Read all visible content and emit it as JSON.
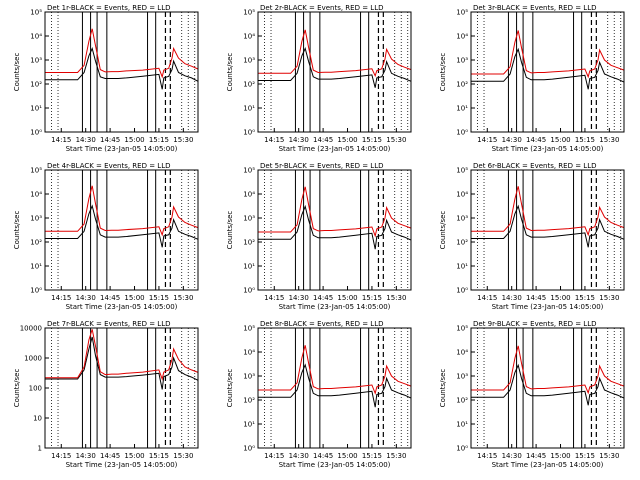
{
  "figure": {
    "xlabel": "Start Time (23-Jan-05 14:05:00)",
    "ylabel": "Counts/sec",
    "xticks": [
      "14:15",
      "14:30",
      "14:45",
      "15:00",
      "15:15",
      "15:30"
    ],
    "colors": {
      "black_series": "#000000",
      "red_series": "#e00000"
    }
  },
  "chart_data": [
    {
      "type": "line",
      "title": "Det 1r-BLACK = Events, RED = LLD",
      "ylog": true,
      "ylim": [
        1,
        100000
      ],
      "yticks": [
        "10⁰",
        "10¹",
        "10²",
        "10³",
        "10⁴",
        "10⁵"
      ],
      "x_minutes": [
        0,
        10,
        20,
        24,
        27,
        29,
        31,
        34,
        37,
        41,
        45,
        50,
        60,
        70,
        72,
        73,
        76,
        78,
        79,
        82,
        86,
        90,
        94
      ],
      "series": [
        {
          "values": [
            150,
            150,
            150,
            300,
            1500,
            3000,
            900,
            200,
            170,
            170,
            170,
            180,
            210,
            250,
            60,
            180,
            210,
            400,
            900,
            300,
            220,
            180,
            130
          ]
        },
        {
          "values": [
            300,
            300,
            300,
            600,
            6000,
            20000,
            4000,
            400,
            320,
            330,
            330,
            350,
            380,
            450,
            200,
            380,
            450,
            1200,
            3000,
            1200,
            700,
            550,
            420
          ]
        }
      ]
    },
    {
      "type": "line",
      "title": "Det 2r-BLACK = Events, RED = LLD",
      "ylog": true,
      "ylim": [
        1,
        100000
      ],
      "yticks": [
        "10⁰",
        "10¹",
        "10²",
        "10³",
        "10⁴",
        "10⁵"
      ],
      "x_minutes": [
        0,
        10,
        20,
        24,
        27,
        29,
        31,
        34,
        37,
        41,
        45,
        50,
        60,
        70,
        72,
        73,
        76,
        78,
        79,
        82,
        86,
        90,
        94
      ],
      "series": [
        {
          "values": [
            140,
            140,
            140,
            280,
            1500,
            3000,
            900,
            200,
            160,
            160,
            160,
            170,
            200,
            240,
            70,
            180,
            200,
            380,
            850,
            280,
            210,
            170,
            130
          ]
        },
        {
          "values": [
            280,
            280,
            280,
            550,
            6000,
            18000,
            3500,
            380,
            300,
            310,
            310,
            330,
            360,
            430,
            220,
            360,
            430,
            1100,
            2800,
            1100,
            650,
            500,
            400
          ]
        }
      ]
    },
    {
      "type": "line",
      "title": "Det 3r-BLACK = Events, RED = LLD",
      "ylog": true,
      "ylim": [
        1,
        100000
      ],
      "yticks": [
        "10⁰",
        "10¹",
        "10²",
        "10³",
        "10⁴",
        "10⁵"
      ],
      "x_minutes": [
        0,
        10,
        20,
        24,
        27,
        29,
        31,
        34,
        37,
        41,
        45,
        50,
        60,
        70,
        72,
        73,
        76,
        78,
        79,
        82,
        86,
        90,
        94
      ],
      "series": [
        {
          "values": [
            130,
            130,
            130,
            260,
            1400,
            2800,
            800,
            190,
            150,
            150,
            150,
            160,
            190,
            230,
            60,
            170,
            190,
            360,
            800,
            260,
            200,
            160,
            120
          ]
        },
        {
          "values": [
            260,
            260,
            260,
            520,
            5500,
            17000,
            3300,
            360,
            290,
            300,
            300,
            320,
            350,
            420,
            200,
            350,
            420,
            1000,
            2600,
            1000,
            600,
            480,
            380
          ]
        }
      ]
    },
    {
      "type": "line",
      "title": "Det 4r-BLACK = Events, RED = LLD",
      "ylog": true,
      "ylim": [
        1,
        100000
      ],
      "yticks": [
        "10⁰",
        "10¹",
        "10²",
        "10³",
        "10⁴",
        "10⁵"
      ],
      "x_minutes": [
        0,
        10,
        20,
        24,
        27,
        29,
        31,
        34,
        37,
        41,
        45,
        50,
        60,
        70,
        72,
        73,
        76,
        78,
        79,
        82,
        86,
        90,
        94
      ],
      "series": [
        {
          "values": [
            140,
            140,
            140,
            280,
            1500,
            3200,
            900,
            200,
            160,
            160,
            160,
            170,
            200,
            240,
            60,
            180,
            200,
            380,
            850,
            280,
            210,
            170,
            130
          ]
        },
        {
          "values": [
            280,
            280,
            280,
            560,
            6500,
            22000,
            4000,
            380,
            300,
            310,
            310,
            330,
            360,
            430,
            200,
            360,
            430,
            1100,
            2900,
            1100,
            650,
            500,
            400
          ]
        }
      ]
    },
    {
      "type": "line",
      "title": "Det 5r-BLACK = Events, RED = LLD",
      "ylog": true,
      "ylim": [
        1,
        100000
      ],
      "yticks": [
        "10⁰",
        "10¹",
        "10²",
        "10³",
        "10⁴",
        "10⁵"
      ],
      "x_minutes": [
        0,
        10,
        20,
        24,
        27,
        29,
        31,
        34,
        37,
        41,
        45,
        50,
        60,
        70,
        72,
        73,
        76,
        78,
        79,
        82,
        86,
        90,
        94
      ],
      "series": [
        {
          "values": [
            130,
            130,
            130,
            260,
            1400,
            3000,
            850,
            190,
            150,
            150,
            150,
            160,
            190,
            230,
            50,
            170,
            190,
            360,
            800,
            260,
            200,
            160,
            120
          ]
        },
        {
          "values": [
            260,
            260,
            260,
            520,
            6000,
            20000,
            3800,
            360,
            290,
            300,
            300,
            320,
            350,
            420,
            180,
            350,
            420,
            1000,
            2700,
            1000,
            600,
            480,
            380
          ]
        }
      ]
    },
    {
      "type": "line",
      "title": "Det 6r-BLACK = Events, RED = LLD",
      "ylog": true,
      "ylim": [
        1,
        100000
      ],
      "yticks": [
        "10⁰",
        "10¹",
        "10²",
        "10³",
        "10⁴",
        "10⁵"
      ],
      "x_minutes": [
        0,
        10,
        20,
        24,
        27,
        29,
        31,
        34,
        37,
        41,
        45,
        50,
        60,
        70,
        72,
        73,
        76,
        78,
        79,
        82,
        86,
        90,
        94
      ],
      "series": [
        {
          "values": [
            140,
            140,
            140,
            280,
            1500,
            3100,
            900,
            200,
            160,
            160,
            160,
            170,
            200,
            240,
            60,
            180,
            200,
            380,
            850,
            280,
            210,
            170,
            130
          ]
        },
        {
          "values": [
            280,
            280,
            280,
            560,
            6200,
            21000,
            3900,
            380,
            300,
            310,
            310,
            330,
            360,
            430,
            200,
            360,
            430,
            1100,
            2800,
            1100,
            650,
            500,
            400
          ]
        }
      ]
    },
    {
      "type": "line",
      "title": "Det 7r-BLACK = Events, RED = LLD",
      "ylog": true,
      "ylim": [
        1,
        10000
      ],
      "yticks": [
        "1",
        "10",
        "100",
        "1000",
        "10000"
      ],
      "x_minutes": [
        0,
        10,
        20,
        24,
        27,
        29,
        31,
        34,
        37,
        41,
        45,
        50,
        60,
        70,
        72,
        73,
        76,
        78,
        79,
        82,
        86,
        90,
        94
      ],
      "series": [
        {
          "values": [
            200,
            200,
            200,
            400,
            2000,
            5000,
            1200,
            280,
            230,
            230,
            230,
            240,
            270,
            310,
            90,
            240,
            280,
            500,
            1000,
            380,
            280,
            230,
            180
          ]
        },
        {
          "values": [
            220,
            220,
            220,
            500,
            4000,
            9000,
            2500,
            350,
            280,
            290,
            290,
            310,
            340,
            400,
            200,
            340,
            400,
            900,
            2000,
            900,
            500,
            400,
            330
          ]
        }
      ]
    },
    {
      "type": "line",
      "title": "Det 8r-BLACK = Events, RED = LLD",
      "ylog": true,
      "ylim": [
        1,
        100000
      ],
      "yticks": [
        "10⁰",
        "10¹",
        "10²",
        "10³",
        "10⁴",
        "10⁵"
      ],
      "x_minutes": [
        0,
        10,
        20,
        24,
        27,
        29,
        31,
        34,
        37,
        41,
        45,
        50,
        60,
        70,
        72,
        73,
        76,
        78,
        79,
        82,
        86,
        90,
        94
      ],
      "series": [
        {
          "values": [
            130,
            130,
            130,
            260,
            1400,
            2900,
            850,
            190,
            150,
            150,
            150,
            160,
            190,
            230,
            50,
            170,
            190,
            360,
            800,
            260,
            200,
            160,
            120
          ]
        },
        {
          "values": [
            260,
            260,
            260,
            520,
            5800,
            19000,
            3600,
            360,
            290,
            300,
            300,
            320,
            350,
            420,
            190,
            350,
            420,
            1000,
            2600,
            1000,
            600,
            480,
            380
          ]
        }
      ]
    },
    {
      "type": "line",
      "title": "Det 9r-BLACK = Events, RED = LLD",
      "ylog": true,
      "ylim": [
        1,
        100000
      ],
      "yticks": [
        "10⁰",
        "10¹",
        "10²",
        "10³",
        "10⁴",
        "10⁵"
      ],
      "x_minutes": [
        0,
        10,
        20,
        24,
        27,
        29,
        31,
        34,
        37,
        41,
        45,
        50,
        60,
        70,
        72,
        73,
        76,
        78,
        79,
        82,
        86,
        90,
        94
      ],
      "series": [
        {
          "values": [
            130,
            130,
            130,
            260,
            1400,
            2800,
            800,
            190,
            150,
            150,
            150,
            160,
            190,
            230,
            60,
            170,
            190,
            360,
            800,
            260,
            200,
            160,
            120
          ]
        },
        {
          "values": [
            260,
            260,
            260,
            520,
            5500,
            18000,
            3400,
            360,
            290,
            300,
            300,
            320,
            350,
            420,
            200,
            350,
            420,
            1000,
            2600,
            1000,
            600,
            480,
            380
          ]
        }
      ]
    }
  ]
}
